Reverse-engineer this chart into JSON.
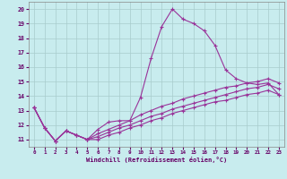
{
  "xlabel": "Windchill (Refroidissement éolien,°C)",
  "bg_color": "#c8ecee",
  "line_color": "#993399",
  "grid_color": "#a8cccc",
  "xlim": [
    -0.5,
    23.5
  ],
  "ylim": [
    10.5,
    20.5
  ],
  "xticks": [
    0,
    1,
    2,
    3,
    4,
    5,
    6,
    7,
    8,
    9,
    10,
    11,
    12,
    13,
    14,
    15,
    16,
    17,
    18,
    19,
    20,
    21,
    22,
    23
  ],
  "yticks": [
    11,
    12,
    13,
    14,
    15,
    16,
    17,
    18,
    19,
    20
  ],
  "lines": [
    [
      13.2,
      11.8,
      10.9,
      11.6,
      11.3,
      11.0,
      11.7,
      12.2,
      12.3,
      12.3,
      13.9,
      16.6,
      18.8,
      20.0,
      19.3,
      19.0,
      18.5,
      17.5,
      15.8,
      15.2,
      14.9,
      14.8,
      14.9,
      14.1
    ],
    [
      13.2,
      11.8,
      10.9,
      11.6,
      11.3,
      11.0,
      11.4,
      11.7,
      12.0,
      12.3,
      12.7,
      13.0,
      13.3,
      13.5,
      13.8,
      14.0,
      14.2,
      14.4,
      14.6,
      14.7,
      14.9,
      15.0,
      15.2,
      14.9
    ],
    [
      13.2,
      11.8,
      10.9,
      11.6,
      11.3,
      11.0,
      11.2,
      11.5,
      11.8,
      12.0,
      12.3,
      12.6,
      12.8,
      13.1,
      13.3,
      13.5,
      13.7,
      13.9,
      14.1,
      14.3,
      14.5,
      14.6,
      14.8,
      14.5
    ],
    [
      13.2,
      11.8,
      10.9,
      11.6,
      11.3,
      11.0,
      11.0,
      11.3,
      11.5,
      11.8,
      12.0,
      12.3,
      12.5,
      12.8,
      13.0,
      13.2,
      13.4,
      13.6,
      13.7,
      13.9,
      14.1,
      14.2,
      14.4,
      14.1
    ]
  ]
}
